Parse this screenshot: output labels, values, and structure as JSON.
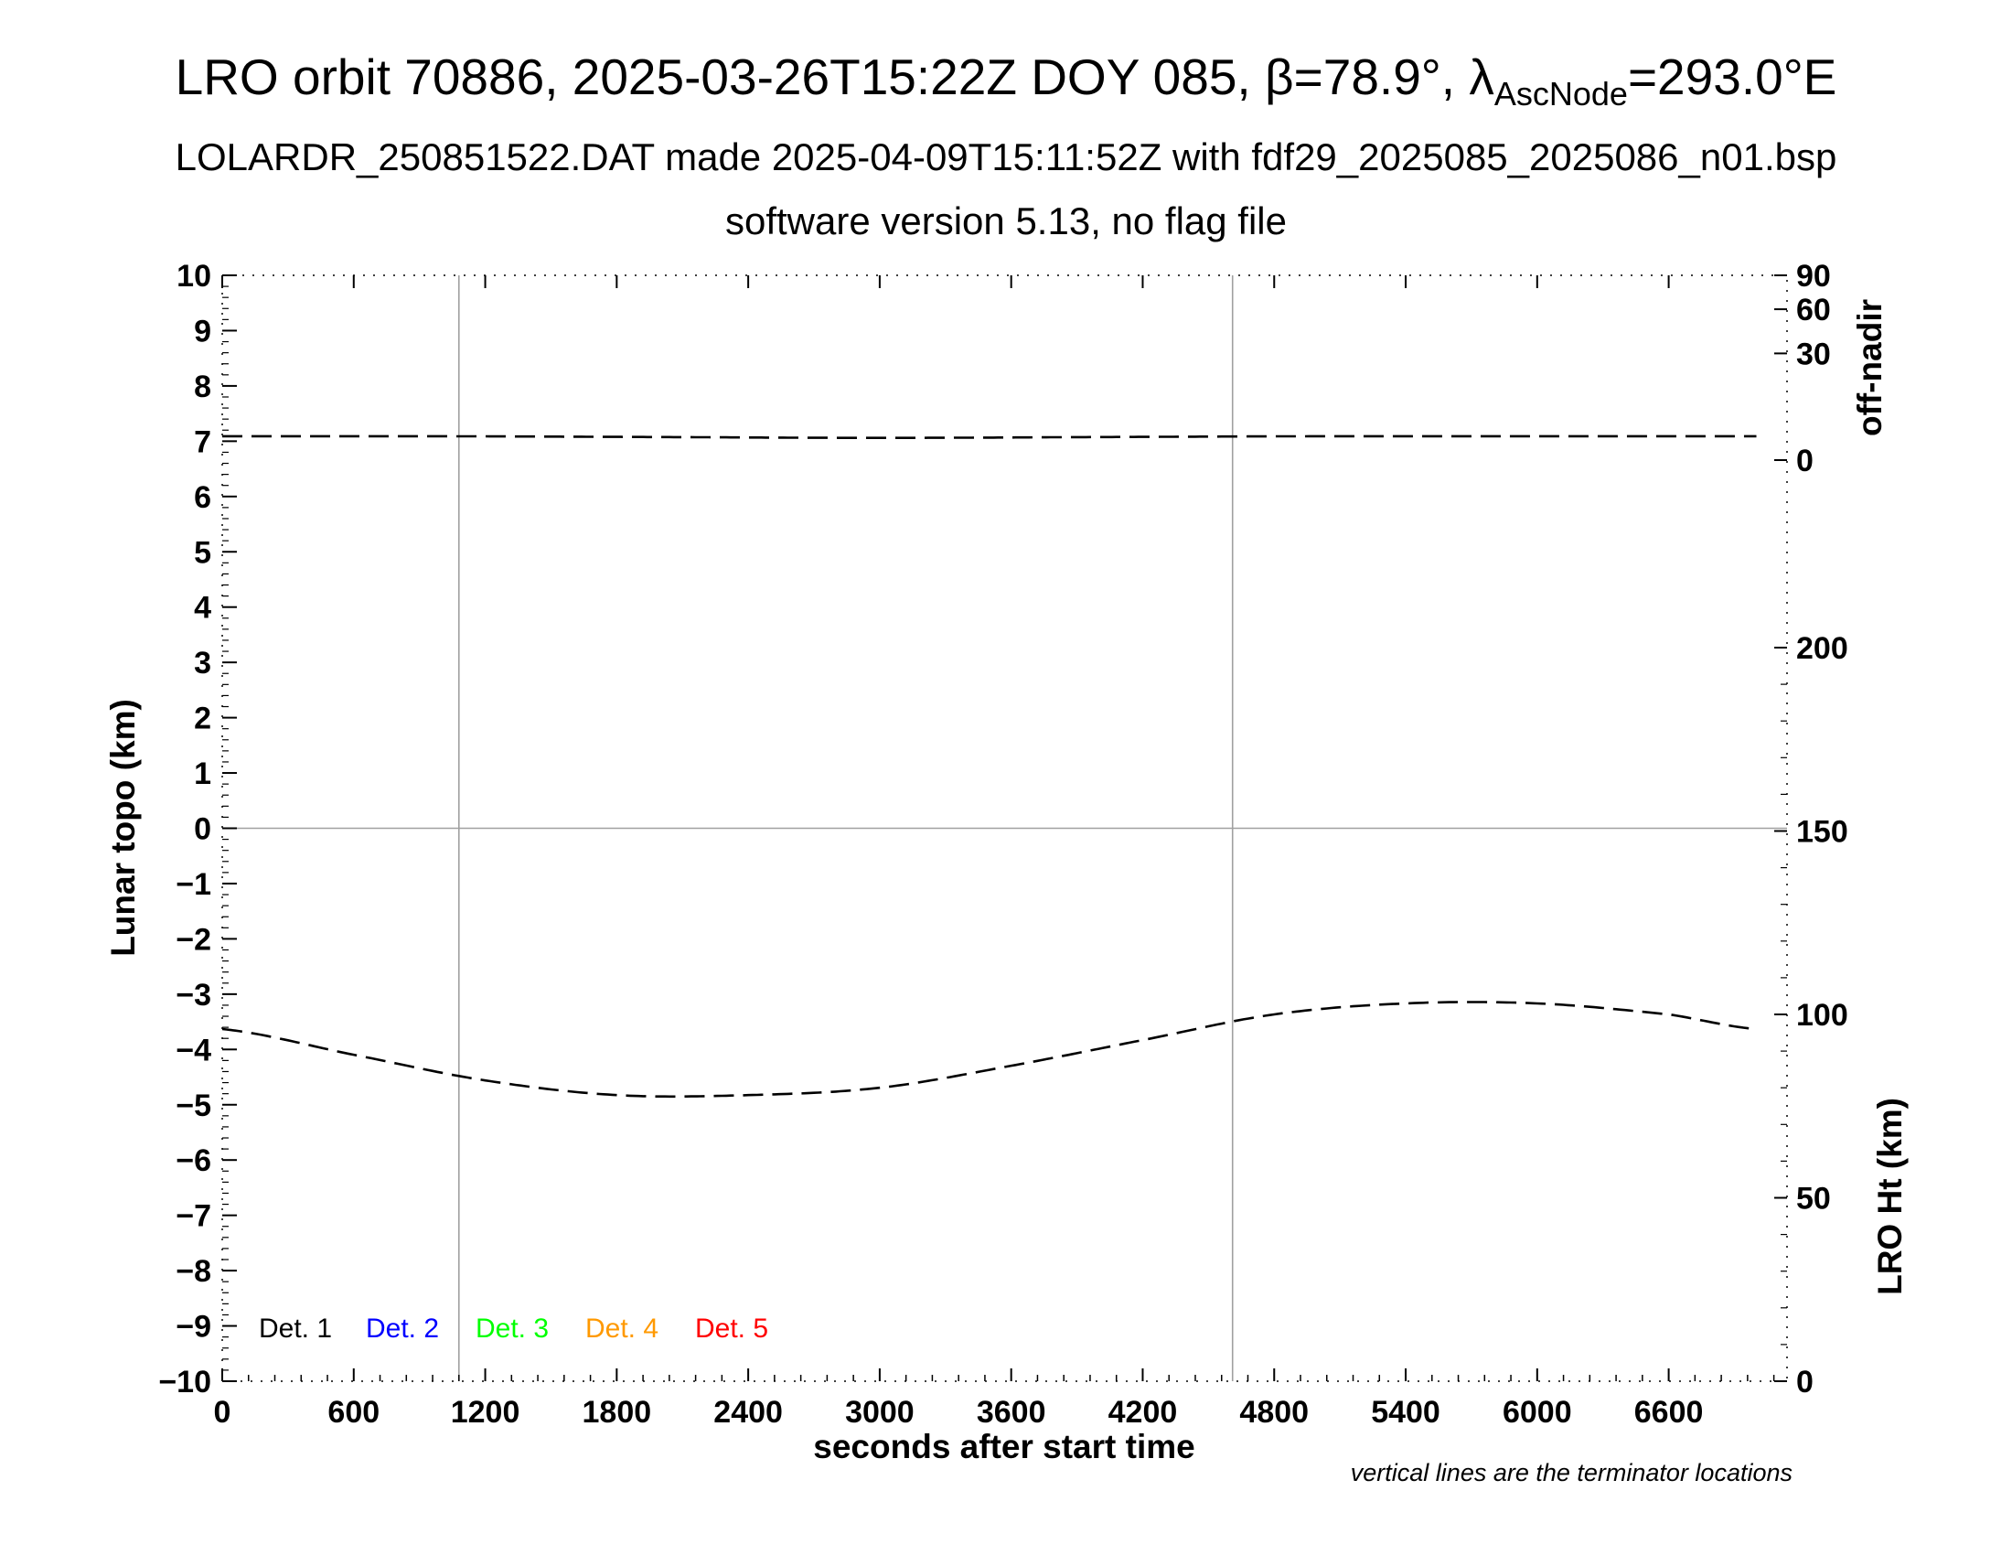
{
  "header": {
    "title_main": "LRO orbit 70886, 2025-03-26T15:22Z DOY 085, β=78.9°, λ",
    "title_sub": "AscNode",
    "title_end": "=293.0°E",
    "subtitle": "LOLARDR_250851522.DAT made 2025-04-09T15:11:52Z with fdf29_2025085_2025086_n01.bsp",
    "subtitle2": "software version 5.13, no flag file"
  },
  "chart_data": {
    "type": "line",
    "xlabel": "seconds after start time",
    "ylabel_left": "Lunar topo (km)",
    "ylabel_right_top": "off-nadir",
    "ylabel_right_bottom": "LRO Ht (km)",
    "xlim": [
      0,
      7140
    ],
    "ylim_left": [
      -10,
      10
    ],
    "x_ticks": [
      "0",
      "600",
      "1200",
      "1800",
      "2400",
      "3000",
      "3600",
      "4200",
      "4800",
      "5400",
      "6000",
      "6600"
    ],
    "y_ticks_left": [
      "10",
      "9",
      "8",
      "7",
      "6",
      "5",
      "4",
      "3",
      "2",
      "1",
      "0",
      "−1",
      "−2",
      "−3",
      "−4",
      "−5",
      "−6",
      "−7",
      "−8",
      "−9",
      "−10"
    ],
    "y_ticks_right_top": [
      "90",
      "60",
      "30",
      "0"
    ],
    "y_ticks_right_bottom": [
      "200",
      "150",
      "100",
      "50",
      "0"
    ],
    "terminator_lines_x": [
      1080,
      4610
    ],
    "grid": "terminator and zero lines only",
    "legend": {
      "placement": "bottom-left",
      "entries": [
        {
          "label": "Det. 1",
          "color": "#000000"
        },
        {
          "label": "Det. 2",
          "color": "#0000ff"
        },
        {
          "label": "Det. 3",
          "color": "#00ff00"
        },
        {
          "label": "Det. 4",
          "color": "#ff9900"
        },
        {
          "label": "Det. 5",
          "color": "#ff0000"
        }
      ]
    },
    "series": [
      {
        "axis": "off-nadir (deg)",
        "style": "dashed",
        "x": [
          0,
          1000,
          2000,
          3000,
          4000,
          5000,
          6000,
          7000
        ],
        "y": [
          1.5,
          1.5,
          1.4,
          1.3,
          1.4,
          1.5,
          1.5,
          1.5
        ]
      },
      {
        "axis": "LRO Ht (km)",
        "style": "dashed",
        "x": [
          0,
          600,
          1200,
          1800,
          2400,
          3000,
          3600,
          4200,
          4800,
          5400,
          6000,
          6600,
          7000
        ],
        "y": [
          96,
          89,
          82,
          78,
          78,
          80,
          86,
          93,
          100,
          103,
          103,
          100,
          96
        ]
      }
    ],
    "note": "vertical lines are the terminator locations"
  }
}
